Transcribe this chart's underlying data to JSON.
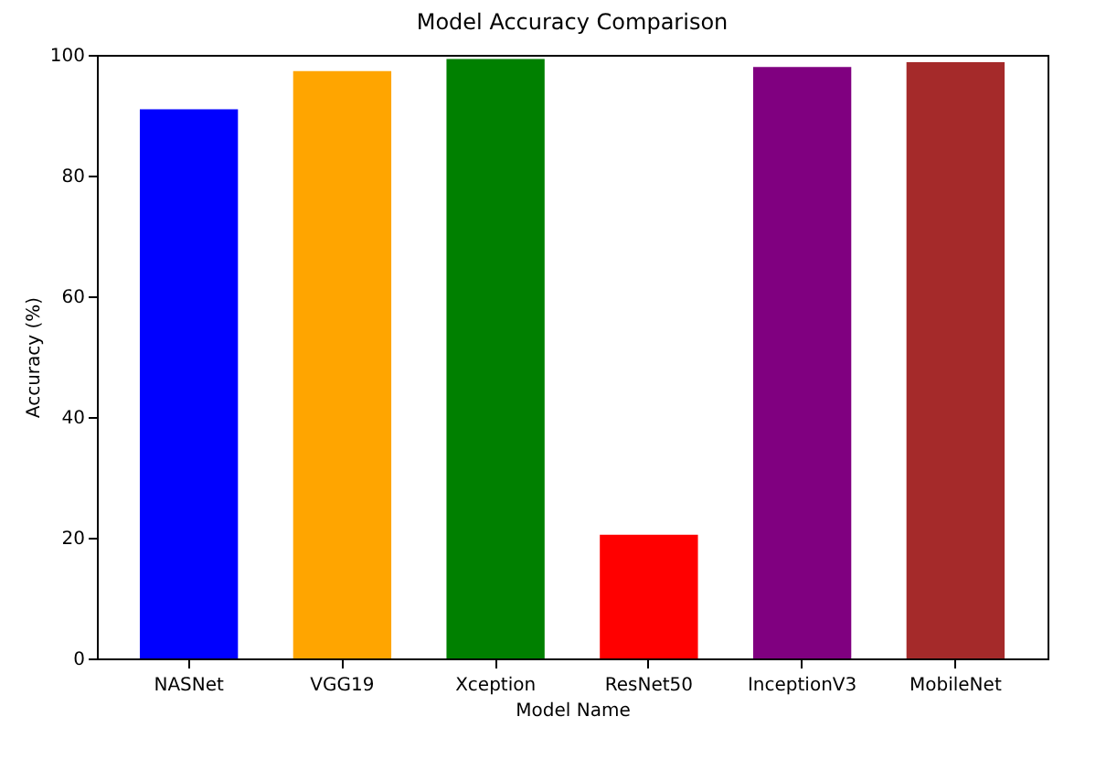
{
  "chart_data": {
    "type": "bar",
    "title": "Model Accuracy Comparison",
    "xlabel": "Model Name",
    "ylabel": "Accuracy (%)",
    "categories": [
      "NASNet",
      "VGG19",
      "Xception",
      "ResNet50",
      "InceptionV3",
      "MobileNet"
    ],
    "values": [
      91.0,
      97.3,
      99.3,
      20.5,
      98.0,
      98.8
    ],
    "colors": [
      "#0000ff",
      "#ffa500",
      "#008000",
      "#ff0000",
      "#800080",
      "#a52a2a"
    ],
    "ylim": [
      0,
      100
    ],
    "yticks": [
      0,
      20,
      40,
      60,
      80,
      100
    ],
    "grid": false
  }
}
